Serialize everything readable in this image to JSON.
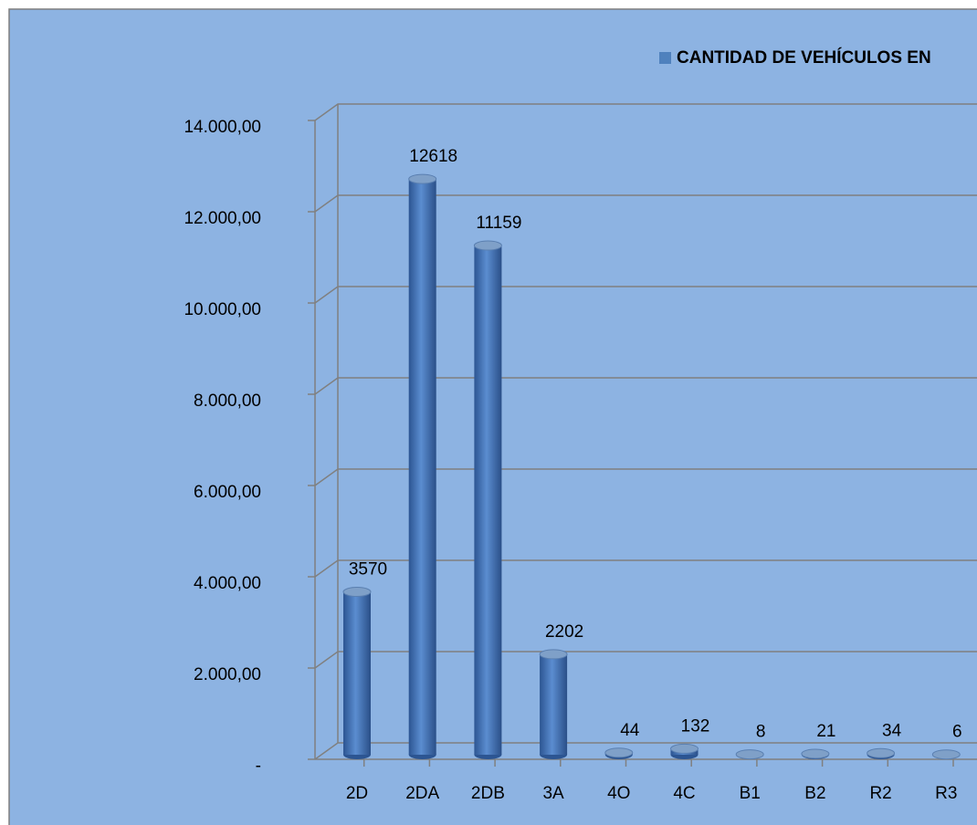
{
  "chart_data": {
    "type": "bar",
    "legend": "CANTIDAD DE VEHÍCULOS EN",
    "categories": [
      "2D",
      "2DA",
      "2DB",
      "3A",
      "4O",
      "4C",
      "B1",
      "B2",
      "R2",
      "R3"
    ],
    "series": [
      {
        "name": "CANTIDAD DE VEHÍCULOS EN",
        "color": "#4f81bd",
        "values": [
          3570,
          12618,
          11159,
          2202,
          44,
          132,
          8,
          21,
          34,
          6
        ]
      }
    ],
    "ylim": [
      0,
      14000
    ],
    "yticks": [
      {
        "value": 0,
        "label": "-"
      },
      {
        "value": 2000,
        "label": "2.000,00"
      },
      {
        "value": 4000,
        "label": "4.000,00"
      },
      {
        "value": 6000,
        "label": "6.000,00"
      },
      {
        "value": 8000,
        "label": "8.000,00"
      },
      {
        "value": 10000,
        "label": "10.000,00"
      },
      {
        "value": 12000,
        "label": "12.000,00"
      },
      {
        "value": 14000,
        "label": "14.000,00"
      }
    ],
    "grid": true
  }
}
